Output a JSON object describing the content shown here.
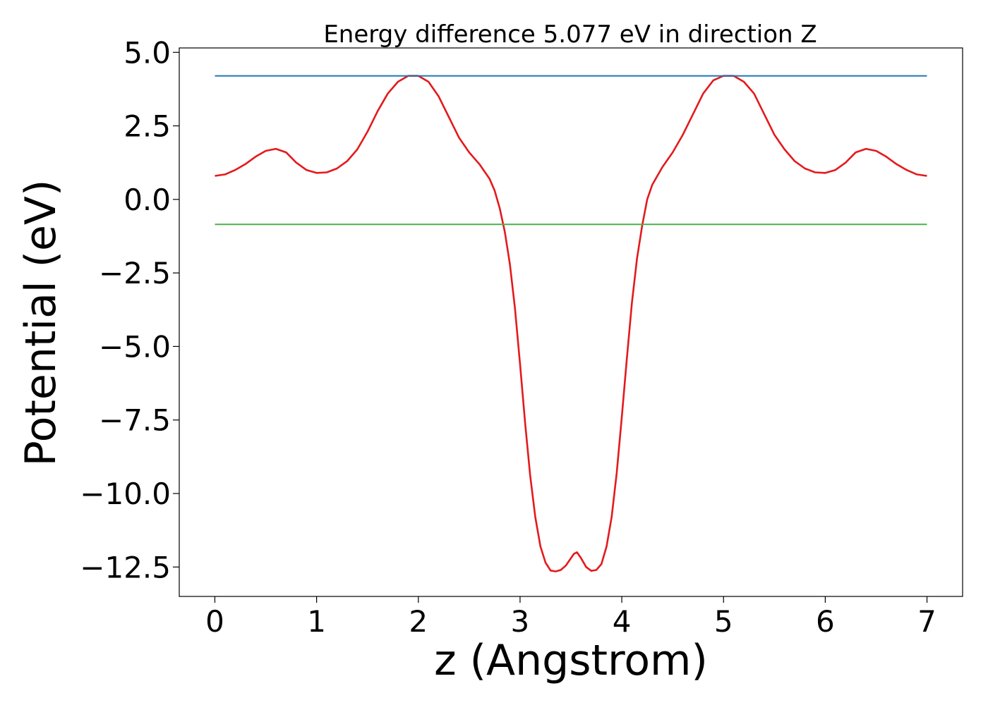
{
  "chart_data": {
    "type": "line",
    "title": "Energy difference 5.077 eV in direction Z",
    "xlabel": "z (Angstrom)",
    "ylabel": "Potential (eV)",
    "xlim": [
      -0.35,
      7.35
    ],
    "ylim": [
      -13.5,
      5.15
    ],
    "xticks": [
      0,
      1,
      2,
      3,
      4,
      5,
      6,
      7
    ],
    "xtick_labels": [
      "0",
      "1",
      "2",
      "3",
      "4",
      "5",
      "6",
      "7"
    ],
    "yticks": [
      5.0,
      2.5,
      0.0,
      -2.5,
      -5.0,
      -7.5,
      -10.0,
      -12.5
    ],
    "ytick_labels": [
      "5.0",
      "2.5",
      "0.0",
      "−2.5",
      "−5.0",
      "−7.5",
      "−10.0",
      "−12.5"
    ],
    "grid": false,
    "colors": {
      "potential": "#e31a1c",
      "upper": "#1f77b4",
      "lower": "#4daf4a"
    },
    "series": [
      {
        "x": [
          0,
          0.1,
          0.2,
          0.3,
          0.4,
          0.5,
          0.6,
          0.7,
          0.8,
          0.9,
          1.0,
          1.1,
          1.2,
          1.3,
          1.4,
          1.5,
          1.6,
          1.7,
          1.8,
          1.9,
          2.0,
          2.1,
          2.2,
          2.3,
          2.4,
          2.5,
          2.6,
          2.7,
          2.75,
          2.8,
          2.85,
          2.9,
          2.95,
          3.0,
          3.05,
          3.1,
          3.15,
          3.2,
          3.25,
          3.3,
          3.35,
          3.4,
          3.45,
          3.5,
          3.53,
          3.56,
          3.6,
          3.65,
          3.7,
          3.75,
          3.8,
          3.85,
          3.9,
          3.95,
          4.0,
          4.05,
          4.1,
          4.15,
          4.2,
          4.25,
          4.3,
          4.4,
          4.5,
          4.6,
          4.7,
          4.8,
          4.9,
          5.0,
          5.1,
          5.2,
          5.3,
          5.4,
          5.5,
          5.6,
          5.7,
          5.8,
          5.9,
          6.0,
          6.1,
          6.2,
          6.3,
          6.4,
          6.5,
          6.6,
          6.7,
          6.8,
          6.9,
          7.0
        ],
        "y": [
          0.8,
          0.85,
          1.0,
          1.2,
          1.45,
          1.65,
          1.72,
          1.6,
          1.25,
          1.0,
          0.9,
          0.92,
          1.05,
          1.3,
          1.7,
          2.3,
          3.0,
          3.6,
          4.0,
          4.2,
          4.2,
          4.0,
          3.5,
          2.8,
          2.1,
          1.6,
          1.2,
          0.7,
          0.3,
          -0.3,
          -1.1,
          -2.2,
          -3.7,
          -5.6,
          -7.6,
          -9.4,
          -10.8,
          -11.8,
          -12.35,
          -12.62,
          -12.65,
          -12.6,
          -12.45,
          -12.2,
          -12.05,
          -12.0,
          -12.2,
          -12.5,
          -12.63,
          -12.6,
          -12.4,
          -11.8,
          -10.8,
          -9.3,
          -7.4,
          -5.4,
          -3.5,
          -2.0,
          -0.9,
          0.0,
          0.5,
          1.1,
          1.6,
          2.2,
          2.9,
          3.6,
          4.05,
          4.2,
          4.2,
          4.0,
          3.6,
          2.9,
          2.2,
          1.7,
          1.3,
          1.05,
          0.92,
          0.9,
          1.0,
          1.25,
          1.6,
          1.72,
          1.65,
          1.45,
          1.2,
          1.0,
          0.85,
          0.8
        ]
      },
      {
        "x": [
          0,
          7
        ],
        "y": [
          4.2,
          4.2
        ]
      },
      {
        "x": [
          0,
          7
        ],
        "y": [
          -0.85,
          -0.85
        ]
      }
    ]
  }
}
